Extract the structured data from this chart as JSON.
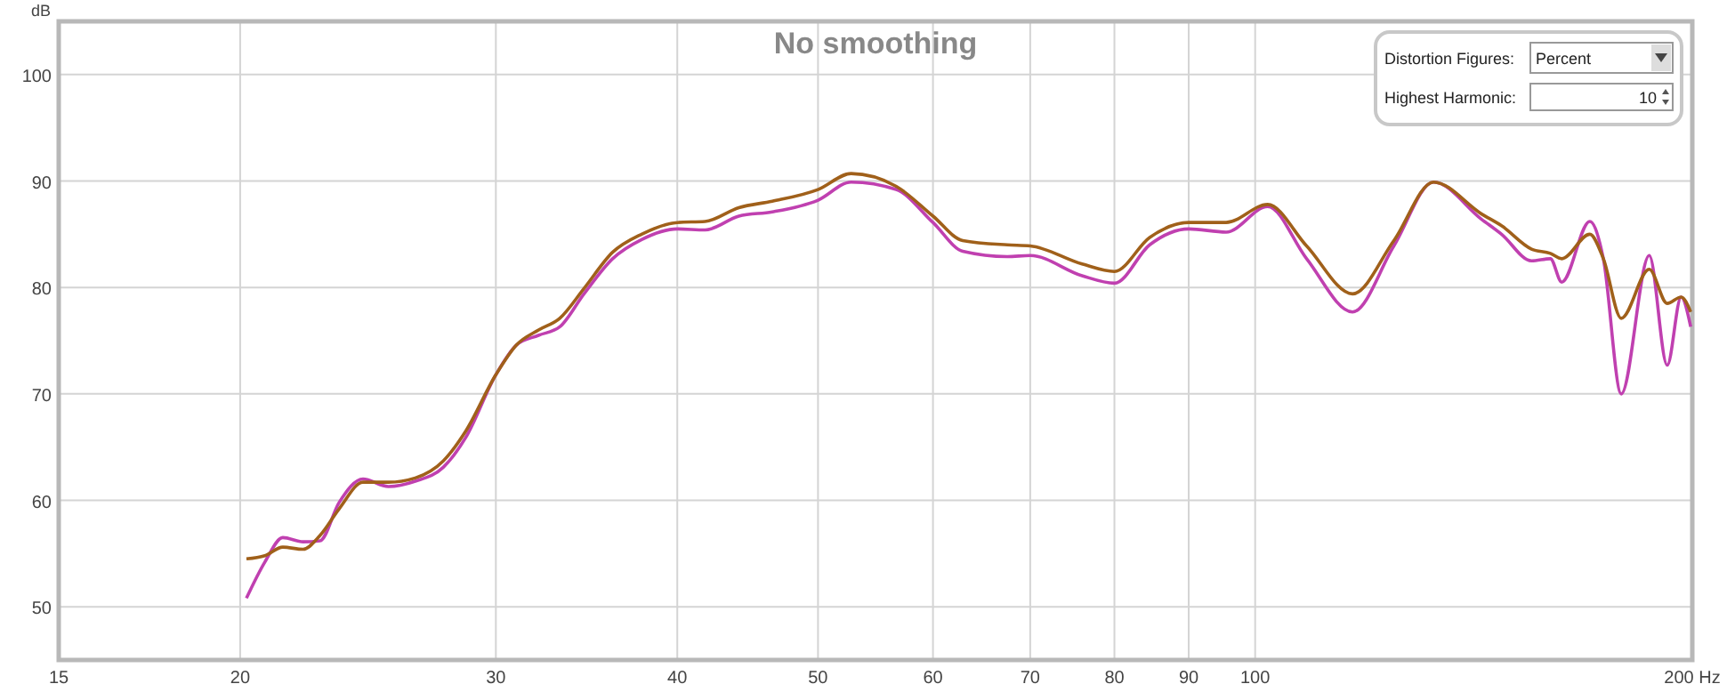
{
  "chart_data": {
    "type": "line",
    "title": "No smoothing",
    "ylabel": "dB",
    "log": "x",
    "grid": true,
    "xlim": [
      15,
      200
    ],
    "ylim": [
      45,
      105
    ],
    "xticks": [
      15,
      20,
      30,
      40,
      50,
      60,
      70,
      80,
      90,
      100,
      {
        "value": 200,
        "label": "200 Hz"
      }
    ],
    "yticks": [
      50,
      60,
      70,
      80,
      90,
      100
    ],
    "annotations": [
      "Distortion Figures:",
      "Percent",
      "Highest Harmonic:",
      "10"
    ],
    "series": [
      {
        "color": "#c040b0",
        "x": [
          20.2,
          20.8,
          21.4,
          22.1,
          22.7,
          23.4,
          24.3,
          25.3,
          26.4,
          27.6,
          28.6,
          30,
          31,
          32.1,
          33.2,
          34.5,
          36.1,
          37.8,
          40,
          41.8,
          44.1,
          46.5,
          50,
          52.7,
          56.6,
          60,
          62.9,
          67.5,
          70,
          76,
          80,
          84.6,
          90,
          95.5,
          102,
          108.5,
          116.7,
          124.6,
          132.7,
          143.2,
          147.8,
          155,
          159.7,
          162.6,
          170,
          173.7,
          178.7,
          186.8,
          192.2,
          196.5,
          199.5
        ],
        "values": [
          50.8,
          54.2,
          56.5,
          56.1,
          56.2,
          59.8,
          62,
          61.3,
          61.8,
          63.1,
          65.9,
          71.8,
          74.6,
          75.5,
          76.3,
          79.4,
          82.7,
          84.5,
          85.5,
          85.4,
          86.7,
          87.1,
          88.2,
          89.9,
          89.2,
          86.1,
          83.4,
          82.9,
          83,
          81.1,
          80.4,
          84,
          85.5,
          85.2,
          87.6,
          82.7,
          77.7,
          83.9,
          89.9,
          86.4,
          85,
          82.5,
          82.7,
          80.5,
          86.2,
          82.7,
          70,
          83,
          72.7,
          79.1,
          76.3
        ]
      },
      {
        "color": "#a0601a",
        "x": [
          20.2,
          20.8,
          21.4,
          22.1,
          22.7,
          23.4,
          24.3,
          25.3,
          26.4,
          27.6,
          28.6,
          30,
          31,
          32.1,
          33.2,
          34.5,
          36.1,
          37.8,
          40,
          41.8,
          44.1,
          46.5,
          50,
          52.7,
          56.6,
          60,
          62.9,
          67.5,
          70,
          76,
          80,
          84.6,
          90,
          95.5,
          102,
          108.5,
          116.7,
          124.6,
          132.7,
          143.2,
          147.8,
          155,
          159.7,
          162.6,
          170,
          173.7,
          178.7,
          186.8,
          192.2,
          196.5,
          199.5
        ],
        "values": [
          54.5,
          54.8,
          55.6,
          55.4,
          56.7,
          59.2,
          61.7,
          61.7,
          62.1,
          63.7,
          66.5,
          71.8,
          74.6,
          76,
          77.1,
          79.9,
          83.3,
          85,
          86.1,
          86.2,
          87.5,
          88.1,
          89.2,
          90.7,
          89.5,
          86.7,
          84.4,
          84,
          83.9,
          82.2,
          81.5,
          84.7,
          86.1,
          86.1,
          87.8,
          83.9,
          79.4,
          84.4,
          89.9,
          86.9,
          85.8,
          83.6,
          83.2,
          82.7,
          85,
          82.7,
          77.1,
          81.7,
          78.5,
          79.1,
          77.7
        ]
      }
    ]
  }
}
